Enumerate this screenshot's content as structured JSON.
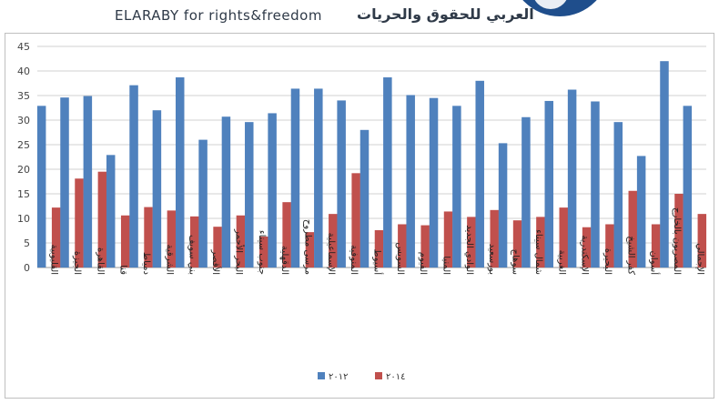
{
  "header": {
    "brand_en": "ELARABY for rights&freedom",
    "brand_ar": "العربي للحقوق والحريات"
  },
  "chart_data": {
    "type": "bar",
    "title": "",
    "xlabel": "",
    "ylabel": "",
    "ylim": [
      0,
      45
    ],
    "yticks": [
      0,
      5,
      10,
      15,
      20,
      25,
      30,
      35,
      40,
      45
    ],
    "grid": true,
    "legend_position": "bottom",
    "categories": [
      "القليوبية",
      "الجيزة",
      "القاهرة",
      "قنا",
      "دمياط",
      "الشرقية",
      "بني سويف",
      "الأقصر",
      "البحر الأحمر",
      "جنوب سيناء",
      "الدقهلية",
      "مرسى مطروح",
      "الإسماعيلية",
      "المنوفية",
      "أسيوط",
      "السويس",
      "الفيوم",
      "المنيا",
      "الوادي الجديد",
      "بورسعيد",
      "سوهاج",
      "شمال سيناء",
      "الغربية",
      "الإسكندرية",
      "البحيرة",
      "كفر الشيخ",
      "أسوان",
      "المصريون بالخارج",
      "الإجمالي"
    ],
    "series": [
      {
        "name": "٢٠١٢",
        "color": "#4f81bd",
        "values": [
          32.9,
          34.6,
          34.9,
          22.9,
          37.1,
          32.0,
          38.7,
          26.0,
          30.7,
          29.6,
          31.4,
          36.4,
          36.4,
          34.0,
          28.0,
          38.7,
          35.1,
          34.5,
          32.9,
          38.0,
          25.3,
          30.6,
          33.9,
          36.2,
          33.8,
          29.6,
          22.7,
          42.0,
          32.9
        ]
      },
      {
        "name": "٢٠١٤",
        "color": "#c0504d",
        "values": [
          12.2,
          18.1,
          19.5,
          10.6,
          12.3,
          11.6,
          10.4,
          8.3,
          10.6,
          6.3,
          13.3,
          7.2,
          10.9,
          19.2,
          7.6,
          8.8,
          8.6,
          11.4,
          10.3,
          11.7,
          9.6,
          10.3,
          12.2,
          8.2,
          8.8,
          15.6,
          8.8,
          15.0,
          10.9
        ]
      }
    ]
  }
}
